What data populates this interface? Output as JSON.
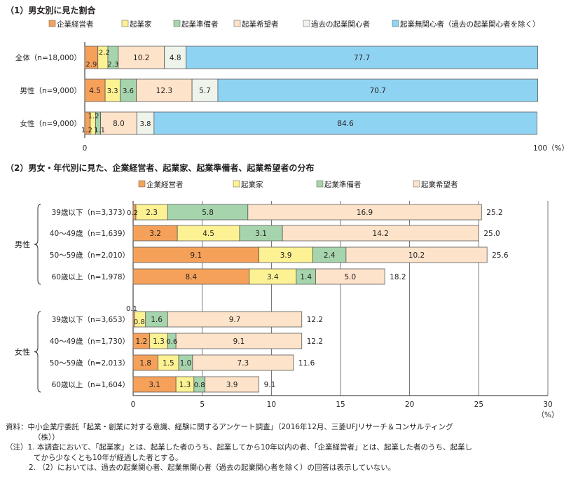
{
  "colors": {
    "企業経営者": "#f6a15a",
    "起業家": "#fdf293",
    "起業準備者": "#a6d5ad",
    "起業希望者": "#fde3c9",
    "過去の起業関心者": "#eef4ec",
    "起業無関心者": "#8fd3f2"
  },
  "chart_data": [
    {
      "type": "bar",
      "orientation": "horizontal",
      "stacked": true,
      "title": "（1）男女別に見た割合",
      "categories": [
        "全体（n=18,000）",
        "男性（n=9,000）",
        "女性（n=9,000）"
      ],
      "series": [
        {
          "name": "企業経営者",
          "values": [
            2.9,
            4.5,
            1.2
          ]
        },
        {
          "name": "起業家",
          "values": [
            2.2,
            3.3,
            1.2
          ]
        },
        {
          "name": "起業準備者",
          "values": [
            2.3,
            3.6,
            1.1
          ]
        },
        {
          "name": "起業希望者",
          "values": [
            10.2,
            12.3,
            8.0
          ]
        },
        {
          "name": "過去の起業関心者",
          "values": [
            4.8,
            5.7,
            3.8
          ]
        },
        {
          "name": "起業無関心者（過去の起業関心者を除く）",
          "values": [
            77.7,
            70.7,
            84.6
          ]
        }
      ],
      "xlim": [
        0,
        100
      ],
      "axis_labels": [
        "0",
        "100（%）"
      ],
      "legend": "top"
    },
    {
      "type": "bar",
      "orientation": "horizontal",
      "stacked": true,
      "title": "（2）男女・年代別に見た、企業経営者、起業家、起業準備者、起業希望者の分布",
      "groups": [
        {
          "name": "男性",
          "categories": [
            "39歳以下（n=3,373）",
            "40～49歳（n=1,639）",
            "50～59歳（n=2,010）",
            "60歳以上（n=1,978）"
          ]
        },
        {
          "name": "女性",
          "categories": [
            "39歳以下（n=3,653）",
            "40～49歳（n=1,730）",
            "50～59歳（n=2,013）",
            "60歳以上（n=1,604）"
          ]
        }
      ],
      "series": [
        {
          "name": "企業経営者",
          "values": [
            0.2,
            3.2,
            9.1,
            8.4,
            0.1,
            1.2,
            1.8,
            3.1
          ]
        },
        {
          "name": "起業家",
          "values": [
            2.3,
            4.5,
            3.9,
            3.4,
            0.8,
            1.3,
            1.5,
            1.3
          ]
        },
        {
          "name": "起業準備者",
          "values": [
            5.8,
            3.1,
            2.4,
            1.4,
            1.6,
            0.6,
            1.0,
            0.8
          ]
        },
        {
          "name": "起業希望者",
          "values": [
            16.9,
            14.2,
            10.2,
            5.0,
            9.7,
            9.1,
            7.3,
            3.9
          ]
        }
      ],
      "totals": [
        25.2,
        25.0,
        25.6,
        18.2,
        12.2,
        12.2,
        11.6,
        9.1
      ],
      "xlim": [
        0,
        30
      ],
      "xticks": [
        0,
        5,
        10,
        15,
        20,
        25,
        30
      ],
      "xunit": "（%）",
      "grid": true,
      "legend": "top"
    }
  ],
  "notes": {
    "source": "資料：中小企業庁委託「起業・創業に対する意識、経験に関するアンケート調査」（2016年12月、三菱UFJリサーチ＆コンサルティング",
    "source_cont": "（株））",
    "note1": "（注）1. 本調査において、「起業家」とは、起業した者のうち、起業してから10年以内の者、「企業経営者」とは、起業した者のうち、起業し",
    "note1_cont": "てから少なくとも10年が経過した者とする。",
    "note2": "2. （2）においては、過去の起業関心者、起業無関心者（過去の起業関心者を除く）の回答は表示していない。"
  }
}
